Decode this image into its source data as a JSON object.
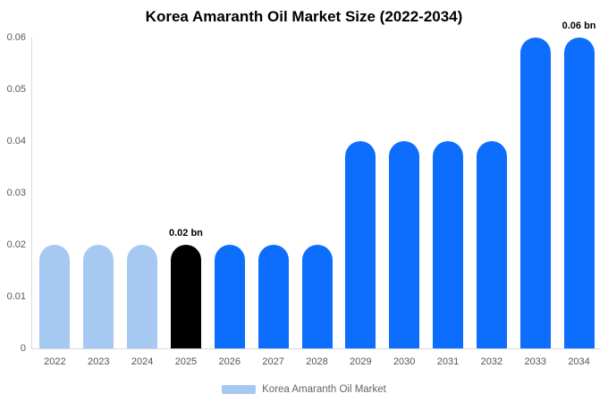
{
  "title": "Korea Amaranth Oil Market Size (2022-2034)",
  "legend": {
    "label": "Korea Amaranth Oil Market",
    "swatch_color": "#a6c9f2"
  },
  "colors": {
    "primary_bar": "#0d6efd",
    "history_bar": "#a6c9f2",
    "highlight_bar": "#000000",
    "axis_line": "#d9d9d9"
  },
  "chart_data": {
    "type": "bar",
    "title": "Korea Amaranth Oil Market Size (2022-2034)",
    "categories": [
      "2022",
      "2023",
      "2024",
      "2025",
      "2026",
      "2027",
      "2028",
      "2029",
      "2030",
      "2031",
      "2032",
      "2033",
      "2034"
    ],
    "values": [
      0.02,
      0.02,
      0.02,
      0.02,
      0.02,
      0.02,
      0.02,
      0.04,
      0.04,
      0.04,
      0.04,
      0.06,
      0.06
    ],
    "bar_colors": [
      "#a6c9f2",
      "#a6c9f2",
      "#a6c9f2",
      "#000000",
      "#0d6efd",
      "#0d6efd",
      "#0d6efd",
      "#0d6efd",
      "#0d6efd",
      "#0d6efd",
      "#0d6efd",
      "#0d6efd",
      "#0d6efd"
    ],
    "unit": "bn",
    "xlabel": "",
    "ylabel": "",
    "ylim": [
      0,
      0.06
    ],
    "ytick_step": 0.01,
    "ytick_labels": [
      "0",
      "0.01",
      "0.02",
      "0.03",
      "0.04",
      "0.05",
      "0.06"
    ],
    "annotations": [
      {
        "category": "2025",
        "text": "0.02 bn"
      },
      {
        "category": "2034",
        "text": "0.06 bn"
      }
    ],
    "legend_entries": [
      "Korea Amaranth Oil Market"
    ],
    "legend_position": "bottom",
    "grid": false
  }
}
